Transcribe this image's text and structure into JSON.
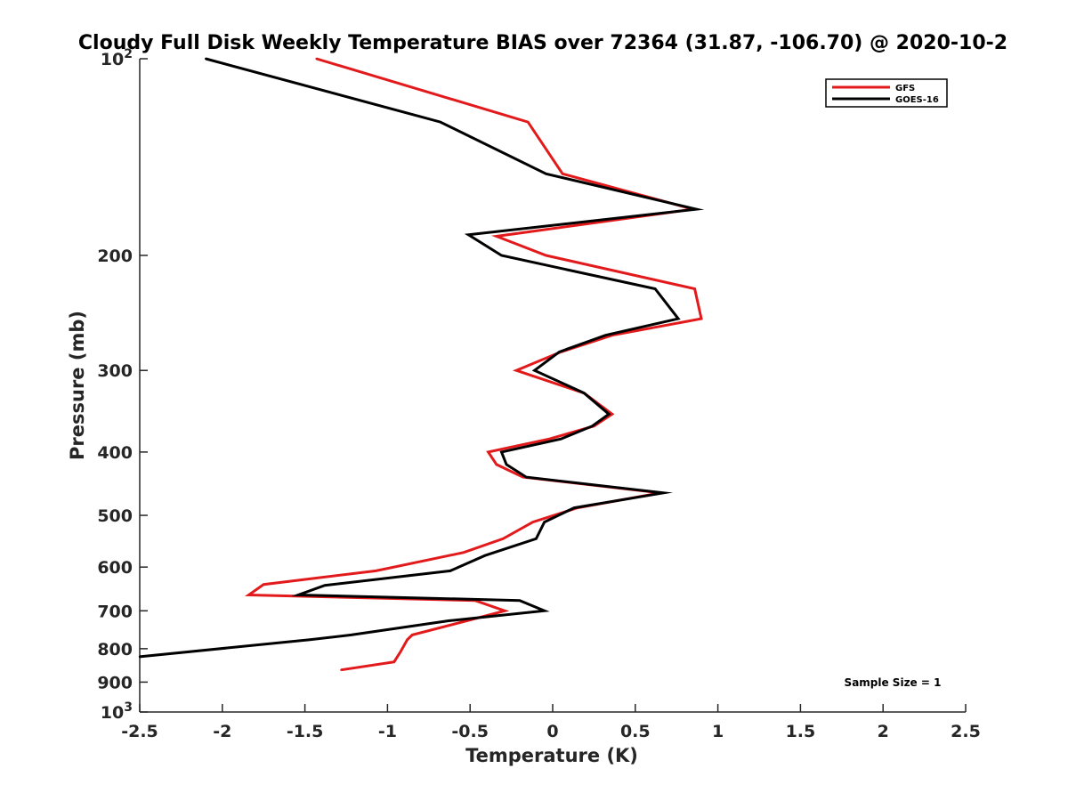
{
  "chart_data": {
    "type": "line",
    "title": "Cloudy Full Disk Weekly Temperature BIAS over 72364 (31.87, -106.70) @ 2020-10-2",
    "xlabel": "Temperature (K)",
    "ylabel": "Pressure (mb)",
    "xlim": [
      -2.5,
      2.5
    ],
    "ylim": [
      100,
      1000
    ],
    "y_scale": "log",
    "y_reversed": true,
    "x_ticks": [
      "-2.5",
      "-2",
      "-1.5",
      "-1",
      "-0.5",
      "0",
      "0.5",
      "1",
      "1.5",
      "2",
      "2.5"
    ],
    "y_ticks": [
      {
        "value": 100,
        "base": "10",
        "exp": "2"
      },
      {
        "value": 200,
        "label": "200"
      },
      {
        "value": 300,
        "label": "300"
      },
      {
        "value": 400,
        "label": "400"
      },
      {
        "value": 500,
        "label": "500"
      },
      {
        "value": 600,
        "label": "600"
      },
      {
        "value": 700,
        "label": "700"
      },
      {
        "value": 800,
        "label": "800"
      },
      {
        "value": 900,
        "label": "900"
      },
      {
        "value": 1000,
        "base": "10",
        "exp": "3"
      }
    ],
    "grid": false,
    "legend_position": "top-right",
    "series": [
      {
        "name": "GFS",
        "color": "#e31a1c",
        "points": [
          {
            "t": -1.43,
            "p": 100
          },
          {
            "t": -0.15,
            "p": 125
          },
          {
            "t": 0.06,
            "p": 150
          },
          {
            "t": 0.85,
            "p": 170
          },
          {
            "t": -0.34,
            "p": 187
          },
          {
            "t": -0.04,
            "p": 200
          },
          {
            "t": 0.86,
            "p": 225
          },
          {
            "t": 0.9,
            "p": 250
          },
          {
            "t": 0.36,
            "p": 265
          },
          {
            "t": 0.05,
            "p": 281
          },
          {
            "t": -0.22,
            "p": 300
          },
          {
            "t": 0.19,
            "p": 325
          },
          {
            "t": 0.36,
            "p": 350
          },
          {
            "t": 0.25,
            "p": 365
          },
          {
            "t": -0.02,
            "p": 382
          },
          {
            "t": -0.39,
            "p": 400
          },
          {
            "t": -0.34,
            "p": 418
          },
          {
            "t": -0.18,
            "p": 437
          },
          {
            "t": 0.65,
            "p": 462
          },
          {
            "t": 0.15,
            "p": 487
          },
          {
            "t": -0.12,
            "p": 512
          },
          {
            "t": -0.3,
            "p": 543
          },
          {
            "t": -0.54,
            "p": 570
          },
          {
            "t": -1.07,
            "p": 608
          },
          {
            "t": -1.75,
            "p": 638
          },
          {
            "t": -1.84,
            "p": 662
          },
          {
            "t": -0.47,
            "p": 675
          },
          {
            "t": -0.29,
            "p": 700
          },
          {
            "t": -0.52,
            "p": 725
          },
          {
            "t": -0.85,
            "p": 762
          },
          {
            "t": -0.88,
            "p": 775
          },
          {
            "t": -0.92,
            "p": 808
          },
          {
            "t": -0.96,
            "p": 838
          },
          {
            "t": -1.28,
            "p": 862
          }
        ]
      },
      {
        "name": "GOES-16",
        "color": "#000000",
        "points": [
          {
            "t": -2.1,
            "p": 100
          },
          {
            "t": -0.68,
            "p": 125
          },
          {
            "t": -0.04,
            "p": 150
          },
          {
            "t": 0.87,
            "p": 170
          },
          {
            "t": -0.51,
            "p": 186
          },
          {
            "t": -0.31,
            "p": 200
          },
          {
            "t": 0.62,
            "p": 225
          },
          {
            "t": 0.76,
            "p": 250
          },
          {
            "t": 0.32,
            "p": 265
          },
          {
            "t": 0.04,
            "p": 281
          },
          {
            "t": -0.11,
            "p": 300
          },
          {
            "t": 0.19,
            "p": 325
          },
          {
            "t": 0.34,
            "p": 350
          },
          {
            "t": 0.24,
            "p": 365
          },
          {
            "t": 0.05,
            "p": 382
          },
          {
            "t": -0.31,
            "p": 400
          },
          {
            "t": -0.28,
            "p": 418
          },
          {
            "t": -0.16,
            "p": 437
          },
          {
            "t": 0.67,
            "p": 462
          },
          {
            "t": 0.13,
            "p": 487
          },
          {
            "t": -0.05,
            "p": 512
          },
          {
            "t": -0.1,
            "p": 543
          },
          {
            "t": -0.41,
            "p": 576
          },
          {
            "t": -0.62,
            "p": 608
          },
          {
            "t": -1.38,
            "p": 640
          },
          {
            "t": -1.54,
            "p": 662
          },
          {
            "t": -0.2,
            "p": 675
          },
          {
            "t": -0.05,
            "p": 700
          },
          {
            "t": -0.63,
            "p": 725
          },
          {
            "t": -1.22,
            "p": 762
          },
          {
            "t": -1.47,
            "p": 775
          },
          {
            "t": -2.5,
            "p": 823
          }
        ]
      }
    ],
    "annotation": "Sample Size = 1"
  }
}
